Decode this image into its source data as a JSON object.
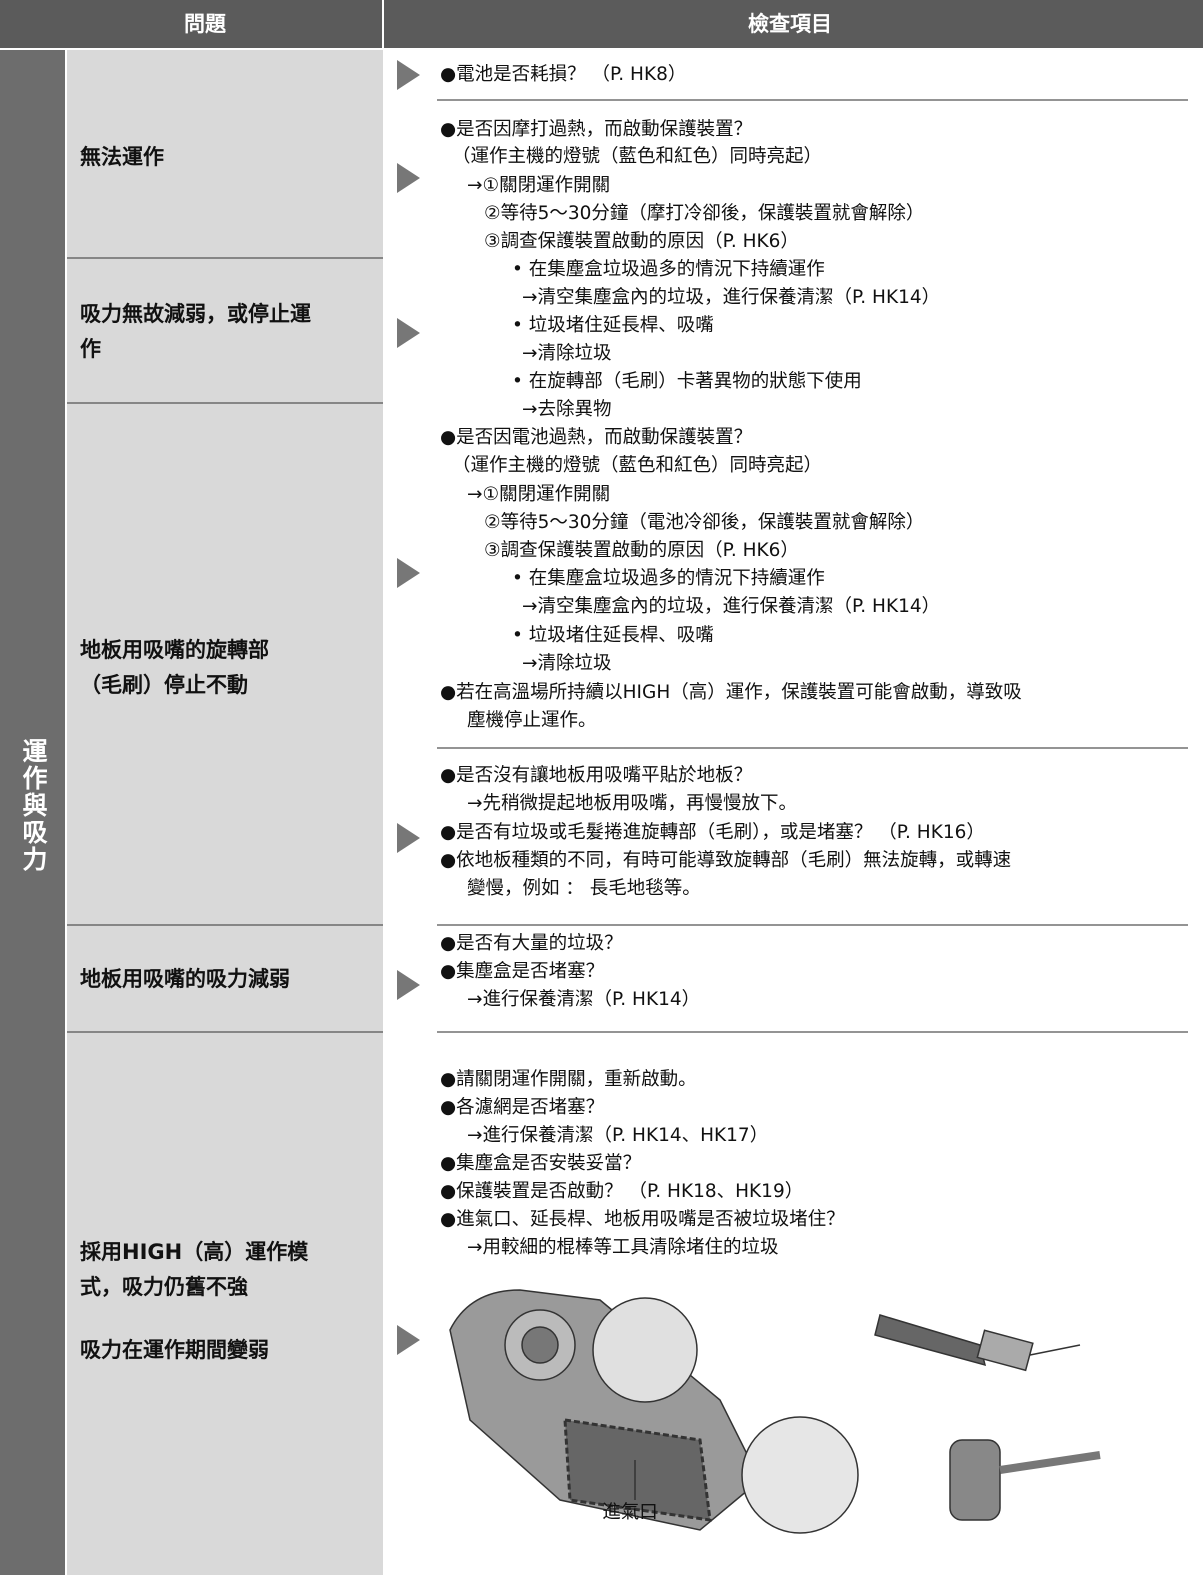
{
  "header": {
    "problem": "問題",
    "check": "檢查項目"
  },
  "category": "運作與吸力",
  "problems": [
    [
      "無法運作"
    ],
    [
      "吸力無故減弱，或停止運",
      "作"
    ],
    [
      "地板用吸嘴的旋轉部",
      "（毛刷）停止不動"
    ],
    [
      "地板用吸嘴的吸力減弱"
    ],
    [
      "採用HIGH（高）運作模",
      "式，吸力仍舊不強",
      "吸力在運作期間變弱"
    ]
  ],
  "checks": [
    [
      "●電池是否耗損？ （P. HK8）"
    ],
    [
      "●是否因摩打過熱，而啟動保護裝置？",
      "（運作主機的燈號（藍色和紅色）同時亮起）",
      "→①關閉運作開關",
      "②等待5～30分鐘（摩打冷卻後，保護裝置就會解除）",
      "③調查保護裝置啟動的原因（P. HK6）",
      "• 在集塵盒垃圾過多的情況下持續運作",
      "→清空集塵盒內的垃圾，進行保養清潔（P. HK14）",
      "• 垃圾堵住延長桿、吸嘴",
      "→清除垃圾",
      "• 在旋轉部（毛刷）卡著異物的狀態下使用",
      "→去除異物",
      "●是否因電池過熱，而啟動保護裝置？",
      "（運作主機的燈號（藍色和紅色）同時亮起）",
      "→①關閉運作開關",
      "②等待5～30分鐘（電池冷卻後，保護裝置就會解除）",
      "③調查保護裝置啟動的原因（P. HK6）",
      "• 在集塵盒垃圾過多的情況下持續運作",
      "→清空集塵盒內的垃圾，進行保養清潔（P. HK14）",
      "• 垃圾堵住延長桿、吸嘴",
      "→清除垃圾",
      "●若在高溫場所持續以HIGH（高）運作，保護裝置可能會啟動，導致吸",
      "塵機停止運作。"
    ],
    [
      "●是否沒有讓地板用吸嘴平貼於地板？",
      "→先稍微提起地板用吸嘴，再慢慢放下。",
      "●是否有垃圾或毛髮捲進旋轉部（毛刷），或是堵塞？ （P. HK16）",
      "●依地板種類的不同，有時可能導致旋轉部（毛刷）無法旋轉，或轉速",
      "變慢，例如 ： 長毛地毯等。"
    ],
    [
      "●是否有大量的垃圾？",
      "●集塵盒是否堵塞？",
      "→進行保養清潔（P. HK14）"
    ],
    [
      "●請關閉運作開關，重新啟動。",
      "●各濾網是否堵塞？",
      "→進行保養清潔（P. HK14、HK17）",
      "●集塵盒是否安裝妥當？",
      "●保護裝置是否啟動？ （P. HK18、HK19）",
      "●進氣口、延長桿、地板用吸嘴是否被垃圾堵住？",
      "→用較細的棍棒等工具清除堵住的垃圾"
    ]
  ],
  "figure_label": "進氣口"
}
